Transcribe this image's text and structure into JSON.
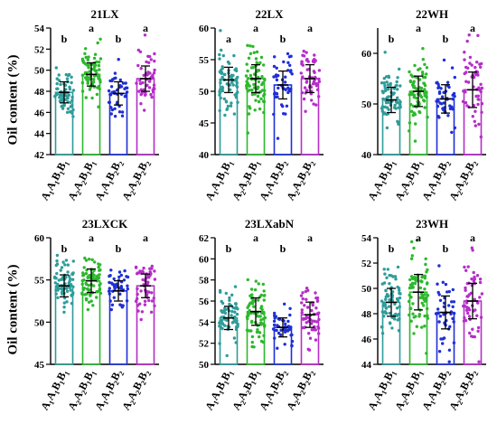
{
  "figure": {
    "ylabel": "Oil content (%)",
    "colors": [
      "#2e9c9a",
      "#2db82d",
      "#1f2fd6",
      "#b52ec8"
    ]
  },
  "chart_data": [
    {
      "type": "bar",
      "title": "21LX",
      "ylim": [
        42,
        54
      ],
      "yticks": [
        42,
        44,
        46,
        48,
        50,
        52,
        54
      ],
      "categories": [
        "A1A1B1B1",
        "A2A2B1B1",
        "A1A1B2B2",
        "A2A2B2B2"
      ],
      "values": [
        47.9,
        49.6,
        47.8,
        49.2
      ],
      "errors": [
        1.0,
        1.1,
        1.1,
        1.2
      ],
      "letters": [
        "b",
        "a",
        "b",
        "a"
      ],
      "n_points": [
        70,
        75,
        45,
        55
      ]
    },
    {
      "type": "bar",
      "title": "22LX",
      "ylim": [
        40,
        60
      ],
      "yticks": [
        40,
        45,
        50,
        55,
        60
      ],
      "categories": [
        "A1A1B1B1",
        "A2A2B1B1",
        "A1A1B2B2",
        "A2A2B2B2"
      ],
      "values": [
        51.8,
        52.0,
        51.0,
        52.0
      ],
      "errors": [
        2.0,
        2.2,
        2.2,
        2.2
      ],
      "letters": [
        "a",
        "a",
        "b",
        "a"
      ],
      "n_points": [
        70,
        75,
        45,
        55
      ]
    },
    {
      "type": "bar",
      "title": "22WH",
      "ylim": [
        40,
        65
      ],
      "yticks": [
        40,
        50,
        60
      ],
      "categories": [
        "A1A1B1B1",
        "A2A2B1B1",
        "A1A1B2B2",
        "A2A2B2B2"
      ],
      "values": [
        50.8,
        52.5,
        51.0,
        52.8
      ],
      "errors": [
        2.5,
        3.0,
        2.8,
        3.5
      ],
      "letters": [
        "b",
        "a",
        "b",
        "a"
      ],
      "n_points": [
        70,
        75,
        45,
        55
      ]
    },
    {
      "type": "bar",
      "title": "23LXCK",
      "ylim": [
        45,
        60
      ],
      "yticks": [
        45,
        50,
        55,
        60
      ],
      "categories": [
        "A1A1B1B1",
        "A2A2B1B1",
        "A1A1B2B2",
        "A2A2B2B2"
      ],
      "values": [
        54.3,
        54.9,
        53.7,
        54.3
      ],
      "errors": [
        1.3,
        1.4,
        1.2,
        1.4
      ],
      "letters": [
        "b",
        "a",
        "b",
        "a"
      ],
      "n_points": [
        70,
        75,
        45,
        55
      ]
    },
    {
      "type": "bar",
      "title": "23LXabN",
      "ylim": [
        50,
        62
      ],
      "yticks": [
        50,
        52,
        54,
        56,
        58,
        60,
        62
      ],
      "categories": [
        "A1A1B1B1",
        "A2A2B1B1",
        "A1A1B2B2",
        "A2A2B2B2"
      ],
      "values": [
        54.4,
        55.0,
        53.5,
        54.7
      ],
      "errors": [
        1.1,
        1.3,
        0.9,
        1.2
      ],
      "letters": [
        "b",
        "a",
        "b",
        "a"
      ],
      "n_points": [
        70,
        75,
        45,
        55
      ]
    },
    {
      "type": "bar",
      "title": "23WH",
      "ylim": [
        44,
        54
      ],
      "yticks": [
        44,
        46,
        48,
        50,
        52,
        54
      ],
      "categories": [
        "A1A1B1B1",
        "A2A2B1B1",
        "A1A1B2B2",
        "A2A2B2B2"
      ],
      "values": [
        48.9,
        49.7,
        48.1,
        49.0
      ],
      "errors": [
        1.1,
        1.4,
        1.3,
        1.4
      ],
      "letters": [
        "b",
        "a",
        "b",
        "a"
      ],
      "n_points": [
        70,
        75,
        45,
        55
      ]
    }
  ]
}
